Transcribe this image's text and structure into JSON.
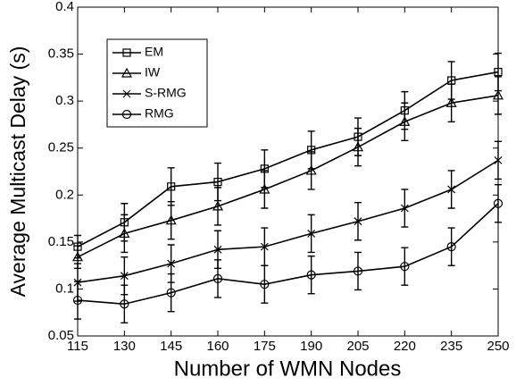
{
  "chart_data": {
    "type": "line",
    "xlabel": "Number of WMN Nodes",
    "ylabel": "Average Multicast Delay (s)",
    "x": [
      115,
      130,
      145,
      160,
      175,
      190,
      205,
      220,
      235,
      250
    ],
    "xlim": [
      115,
      250
    ],
    "xticks": [
      115,
      130,
      145,
      160,
      175,
      190,
      205,
      220,
      235,
      250
    ],
    "ylim": [
      0.05,
      0.4
    ],
    "yticks": [
      0.05,
      0.1,
      0.15,
      0.2,
      0.25,
      0.3,
      0.35,
      0.4
    ],
    "legend": "upper left",
    "series": [
      {
        "name": "EM",
        "color": "#000000",
        "marker": "square",
        "values": [
          0.145,
          0.171,
          0.209,
          0.214,
          0.228,
          0.248,
          0.262,
          0.29,
          0.322,
          0.331
        ],
        "errors": [
          0.012,
          0.02,
          0.02,
          0.02,
          0.02,
          0.02,
          0.02,
          0.02,
          0.02,
          0.02
        ]
      },
      {
        "name": "IW",
        "color": "#000000",
        "marker": "triangle",
        "values": [
          0.134,
          0.159,
          0.173,
          0.188,
          0.206,
          0.226,
          0.251,
          0.278,
          0.298,
          0.306
        ],
        "errors": [
          0.012,
          0.02,
          0.02,
          0.02,
          0.02,
          0.02,
          0.02,
          0.02,
          0.02,
          0.02
        ]
      },
      {
        "name": "S-RMG",
        "color": "#000000",
        "marker": "x",
        "values": [
          0.107,
          0.114,
          0.127,
          0.142,
          0.145,
          0.159,
          0.172,
          0.186,
          0.206,
          0.237
        ],
        "errors": [
          0.02,
          0.02,
          0.02,
          0.02,
          0.02,
          0.02,
          0.02,
          0.02,
          0.02,
          0.02
        ]
      },
      {
        "name": "RMG",
        "color": "#000000",
        "marker": "circle",
        "values": [
          0.088,
          0.084,
          0.096,
          0.111,
          0.105,
          0.115,
          0.119,
          0.124,
          0.145,
          0.191
        ],
        "errors": [
          0.02,
          0.02,
          0.02,
          0.02,
          0.02,
          0.02,
          0.02,
          0.02,
          0.02,
          0.02
        ]
      }
    ]
  }
}
